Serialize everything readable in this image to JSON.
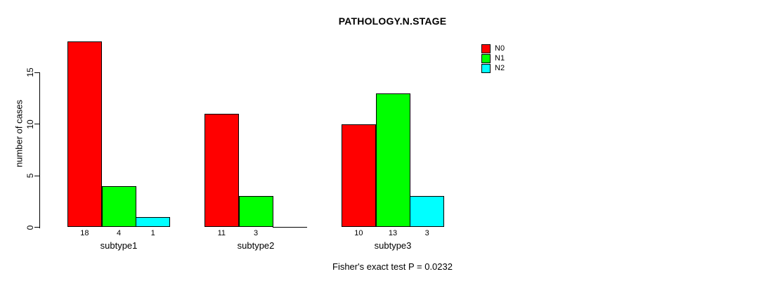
{
  "chart_data": {
    "type": "bar",
    "title": "PATHOLOGY.N.STAGE",
    "ylabel": "number of cases",
    "xlabel": "",
    "annotation": "Fisher's exact test P = 0.0232",
    "categories": [
      "subtype1",
      "subtype2",
      "subtype3"
    ],
    "series": [
      {
        "name": "N0",
        "color": "#FF0000",
        "values": [
          18,
          11,
          10
        ]
      },
      {
        "name": "N1",
        "color": "#00FF00",
        "values": [
          4,
          3,
          13
        ]
      },
      {
        "name": "N2",
        "color": "#00FFFF",
        "values": [
          1,
          0,
          3
        ]
      }
    ],
    "bar_value_labels": [
      [
        18,
        4,
        1
      ],
      [
        11,
        3,
        null
      ],
      [
        10,
        13,
        3
      ]
    ],
    "yticks": [
      0,
      5,
      10,
      15
    ],
    "ylim": [
      0,
      18.6
    ],
    "grid": false,
    "legend_position": "top-right",
    "background_color": "#ffffff",
    "axis_color": "#000000"
  }
}
